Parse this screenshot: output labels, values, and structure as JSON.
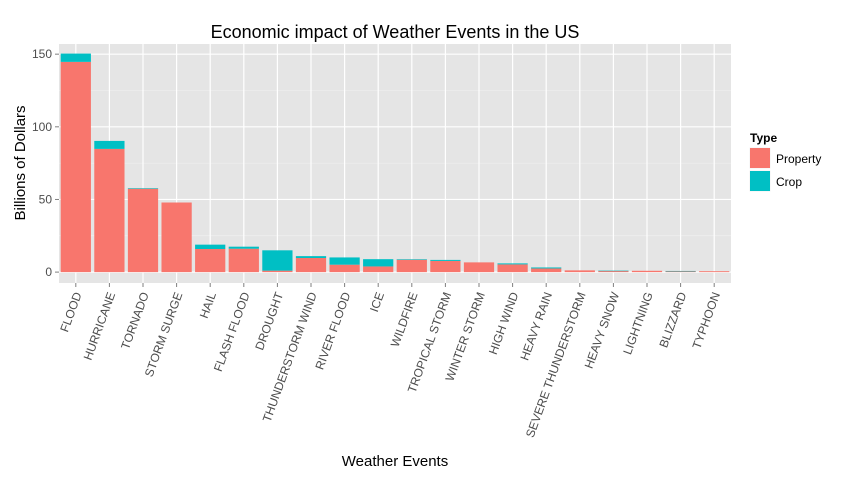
{
  "chart_data": {
    "type": "bar",
    "stacked": true,
    "title": "Economic impact of Weather Events in the US",
    "xlabel": "Weather Events",
    "ylabel": "Billions of Dollars",
    "ylim": [
      -7.5,
      157
    ],
    "yticks": [
      0,
      50,
      100,
      150
    ],
    "grid": true,
    "legend": {
      "title": "Type",
      "position": "right"
    },
    "categories": [
      "FLOOD",
      "HURRICANE",
      "TORNADO",
      "STORM SURGE",
      "HAIL",
      "FLASH FLOOD",
      "DROUGHT",
      "THUNDERSTORM WIND",
      "RIVER FLOOD",
      "ICE",
      "WILDFIRE",
      "TROPICAL STORM",
      "WINTER STORM",
      "HIGH WIND",
      "HEAVY RAIN",
      "SEVERE THUNDERSTORM",
      "HEAVY SNOW",
      "LIGHTNING",
      "BLIZZARD",
      "TYPHOON"
    ],
    "series": [
      {
        "name": "Property",
        "color": "#F8766D",
        "values": [
          144.7,
          84.8,
          57.4,
          47.9,
          15.9,
          16.1,
          1.0,
          9.7,
          5.1,
          3.9,
          8.5,
          7.7,
          6.7,
          5.3,
          2.5,
          1.2,
          0.9,
          0.9,
          0.7,
          0.6
        ]
      },
      {
        "name": "Crop",
        "color": "#00BFC4",
        "values": [
          5.7,
          5.5,
          0.4,
          0.0,
          3.0,
          1.4,
          14.0,
          1.3,
          5.0,
          5.0,
          0.4,
          0.7,
          0.0,
          0.7,
          0.7,
          0.0,
          0.1,
          0.0,
          0.1,
          0.0
        ]
      }
    ]
  }
}
